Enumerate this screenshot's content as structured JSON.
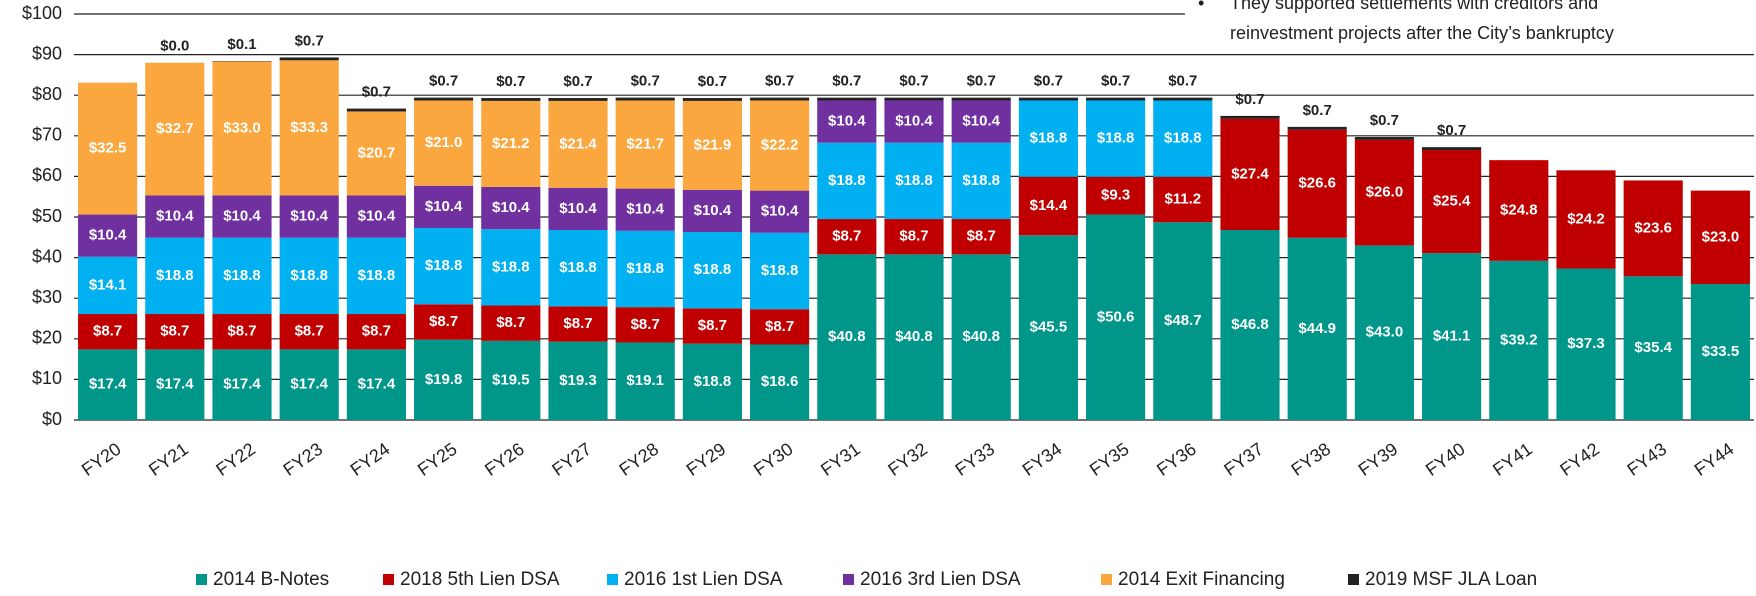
{
  "chart_data": {
    "type": "stacked_bar",
    "categories": [
      "FY20",
      "FY21",
      "FY22",
      "FY23",
      "FY24",
      "FY25",
      "FY26",
      "FY27",
      "FY28",
      "FY29",
      "FY30",
      "FY31",
      "FY32",
      "FY33",
      "FY34",
      "FY35",
      "FY36",
      "FY37",
      "FY38",
      "FY39",
      "FY40",
      "FY41",
      "FY42",
      "FY43",
      "FY44"
    ],
    "ylim": [
      0,
      100
    ],
    "yticks": [
      {
        "value": 0,
        "label": "$0"
      },
      {
        "value": 10,
        "label": "$10"
      },
      {
        "value": 20,
        "label": "$20"
      },
      {
        "value": 30,
        "label": "$30"
      },
      {
        "value": 40,
        "label": "$40"
      },
      {
        "value": 50,
        "label": "$50"
      },
      {
        "value": 60,
        "label": "$60"
      },
      {
        "value": 70,
        "label": "$70"
      },
      {
        "value": 80,
        "label": "$80"
      },
      {
        "value": 90,
        "label": "$90"
      },
      {
        "value": 100,
        "label": "$100"
      }
    ],
    "grid": true,
    "legend": "bottom",
    "annotation": {
      "bullet": "•",
      "lines": [
        "They supported settlements with creditors and",
        "reinvestment projects after the City’s bankruptcy"
      ]
    },
    "series": [
      {
        "name": "2014 B-Notes",
        "color": "#00968a",
        "values": [
          17.4,
          17.4,
          17.4,
          17.4,
          17.4,
          19.8,
          19.5,
          19.3,
          19.1,
          18.8,
          18.6,
          40.8,
          40.8,
          40.8,
          45.5,
          50.6,
          48.7,
          46.8,
          44.9,
          43.0,
          41.1,
          39.2,
          37.3,
          35.4,
          33.5
        ],
        "value_labels": [
          "$17.4",
          "$17.4",
          "$17.4",
          "$17.4",
          "$17.4",
          "$19.8",
          "$19.5",
          "$19.3",
          "$19.1",
          "$18.8",
          "$18.6",
          "$40.8",
          "$40.8",
          "$40.8",
          "$45.5",
          "$50.6",
          "$48.7",
          "$46.8",
          "$44.9",
          "$43.0",
          "$41.1",
          "$39.2",
          "$37.3",
          "$35.4",
          "$33.5"
        ]
      },
      {
        "name": "2018 5th Lien DSA",
        "color": "#c00000",
        "values": [
          8.7,
          8.7,
          8.7,
          8.7,
          8.7,
          8.7,
          8.7,
          8.7,
          8.7,
          8.7,
          8.7,
          8.7,
          8.7,
          8.7,
          14.4,
          9.3,
          11.2,
          27.4,
          26.6,
          26.0,
          25.4,
          24.8,
          24.2,
          23.6,
          23.0
        ],
        "value_labels": [
          "$8.7",
          "$8.7",
          "$8.7",
          "$8.7",
          "$8.7",
          "$8.7",
          "$8.7",
          "$8.7",
          "$8.7",
          "$8.7",
          "$8.7",
          "$8.7",
          "$8.7",
          "$8.7",
          "$14.4",
          "$9.3",
          "$11.2",
          "$27.4",
          "$26.6",
          "$26.0",
          "$25.4",
          "$24.8",
          "$24.2",
          "$23.6",
          "$23.0"
        ]
      },
      {
        "name": "2016 1st Lien DSA",
        "color": "#00b0f0",
        "values": [
          14.1,
          18.8,
          18.8,
          18.8,
          18.8,
          18.8,
          18.8,
          18.8,
          18.8,
          18.8,
          18.8,
          18.8,
          18.8,
          18.8,
          18.8,
          18.8,
          18.8,
          null,
          null,
          null,
          null,
          null,
          null,
          null,
          null
        ],
        "value_labels": [
          "$14.1",
          "$18.8",
          "$18.8",
          "$18.8",
          "$18.8",
          "$18.8",
          "$18.8",
          "$18.8",
          "$18.8",
          "$18.8",
          "$18.8",
          "$18.8",
          "$18.8",
          "$18.8",
          "$18.8",
          "$18.8",
          "$18.8",
          null,
          null,
          null,
          null,
          null,
          null,
          null,
          null
        ]
      },
      {
        "name": "2016 3rd Lien DSA",
        "color": "#7030a0",
        "values": [
          10.4,
          10.4,
          10.4,
          10.4,
          10.4,
          10.4,
          10.4,
          10.4,
          10.4,
          10.4,
          10.4,
          10.4,
          10.4,
          10.4,
          null,
          null,
          null,
          null,
          null,
          null,
          null,
          null,
          null,
          null,
          null
        ],
        "value_labels": [
          "$10.4",
          "$10.4",
          "$10.4",
          "$10.4",
          "$10.4",
          "$10.4",
          "$10.4",
          "$10.4",
          "$10.4",
          "$10.4",
          "$10.4",
          "$10.4",
          "$10.4",
          "$10.4",
          null,
          null,
          null,
          null,
          null,
          null,
          null,
          null,
          null,
          null,
          null
        ]
      },
      {
        "name": "2014 Exit Financing",
        "color": "#f9a73e",
        "values": [
          32.5,
          32.7,
          33.0,
          33.3,
          20.7,
          21.0,
          21.2,
          21.4,
          21.7,
          21.9,
          22.2,
          null,
          null,
          null,
          null,
          null,
          null,
          null,
          null,
          null,
          null,
          null,
          null,
          null,
          null
        ],
        "value_labels": [
          "$32.5",
          "$32.7",
          "$33.0",
          "$33.3",
          "$20.7",
          "$21.0",
          "$21.2",
          "$21.4",
          "$21.7",
          "$21.9",
          "$22.2",
          null,
          null,
          null,
          null,
          null,
          null,
          null,
          null,
          null,
          null,
          null,
          null,
          null,
          null
        ]
      },
      {
        "name": "2019 MSF JLA Loan",
        "color": "#222222",
        "label_position": "above",
        "values": [
          null,
          0.0,
          0.1,
          0.7,
          0.7,
          0.7,
          0.7,
          0.7,
          0.7,
          0.7,
          0.7,
          0.7,
          0.7,
          0.7,
          0.7,
          0.7,
          0.7,
          0.7,
          0.7,
          0.7,
          0.7,
          null,
          null,
          null,
          null
        ],
        "value_labels": [
          null,
          "$0.0",
          "$0.1",
          "$0.7",
          "$0.7",
          "$0.7",
          "$0.7",
          "$0.7",
          "$0.7",
          "$0.7",
          "$0.7",
          "$0.7",
          "$0.7",
          "$0.7",
          "$0.7",
          "$0.7",
          "$0.7",
          "$0.7",
          "$0.7",
          "$0.7",
          "$0.7",
          null,
          null,
          null,
          null
        ]
      }
    ]
  }
}
